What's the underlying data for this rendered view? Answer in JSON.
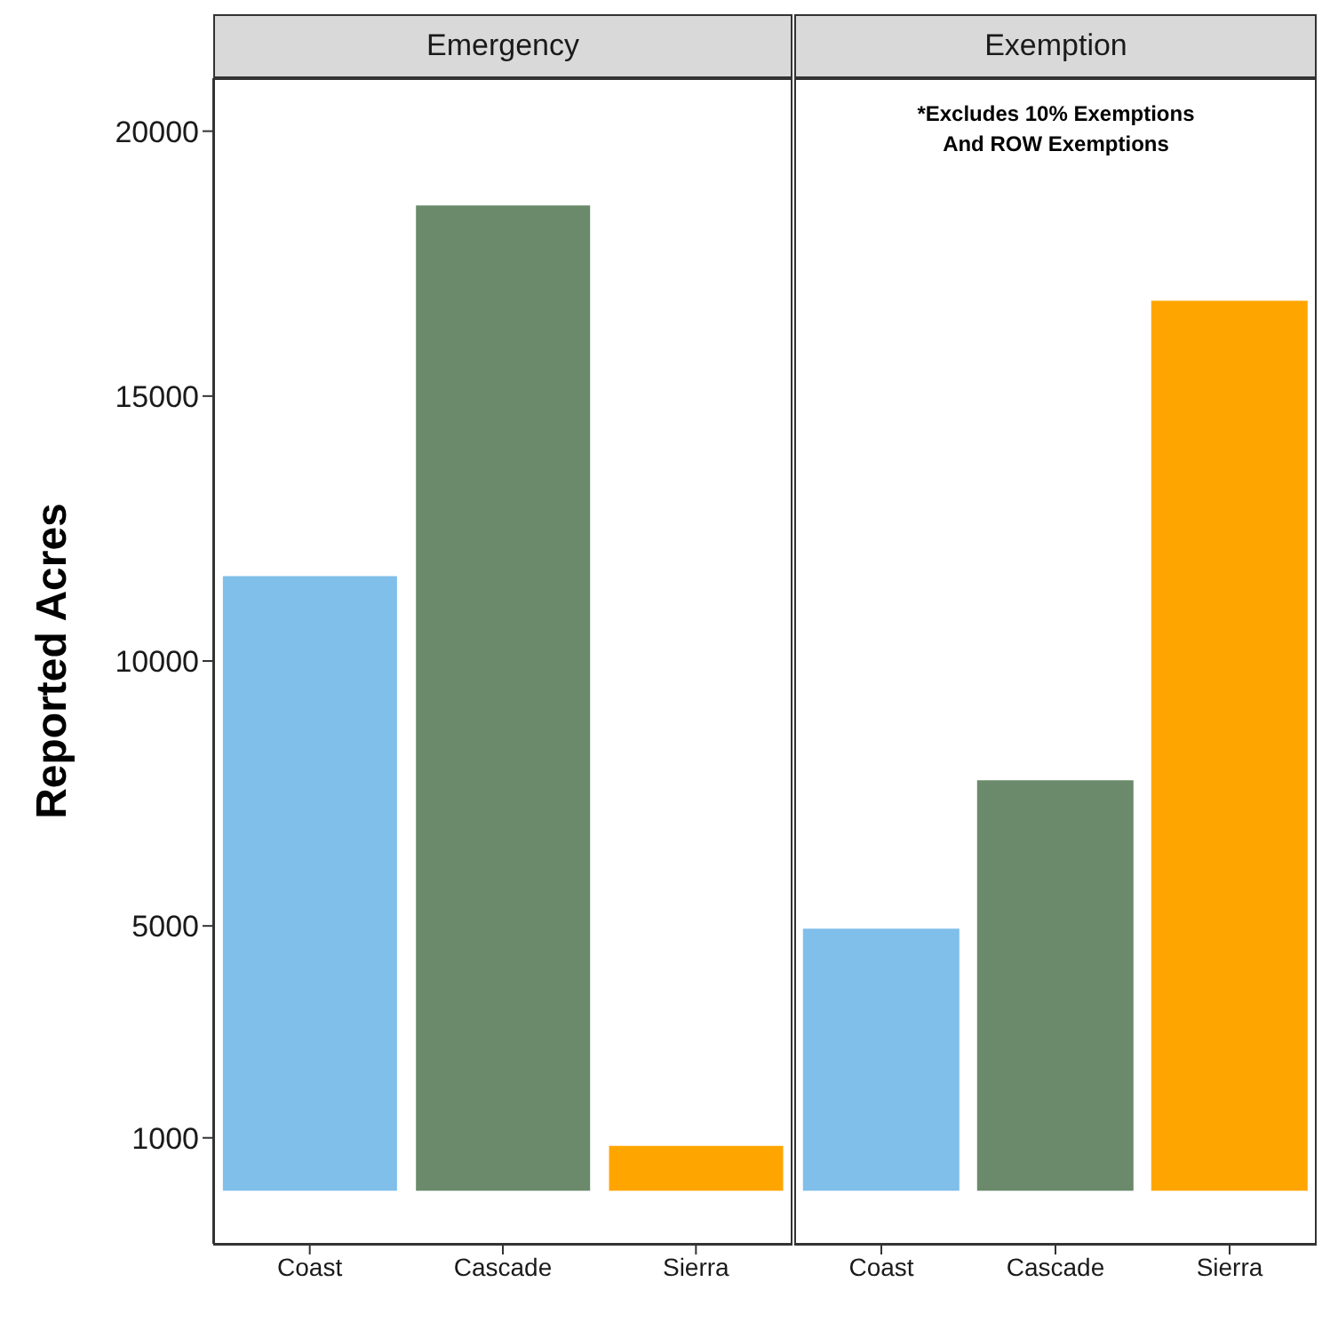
{
  "chart_data": [
    {
      "type": "bar",
      "title": "Emergency",
      "ylabel": "Reported Acres",
      "categories": [
        "Coast",
        "Cascade",
        "Sierra"
      ],
      "values": [
        11600,
        18600,
        850
      ],
      "colors": [
        "#7fbfea",
        "#6a8a6b",
        "#ffa500"
      ],
      "ylim": [
        -1000,
        21000
      ],
      "yticks": [
        1000,
        5000,
        10000,
        15000,
        20000
      ],
      "grid": false,
      "legend": false
    },
    {
      "type": "bar",
      "title": "Exemption",
      "categories": [
        "Coast",
        "Cascade",
        "Sierra"
      ],
      "values": [
        4950,
        7750,
        16800
      ],
      "colors": [
        "#7fbfea",
        "#6a8a6b",
        "#ffa500"
      ],
      "ylim": [
        -1000,
        21000
      ],
      "yticks": [
        1000,
        5000,
        10000,
        15000,
        20000
      ],
      "tick_labels": "x",
      "annotations": [
        "*Excludes 10% Exemptions And ROW Exemptions"
      ],
      "grid": false,
      "legend": false
    }
  ]
}
